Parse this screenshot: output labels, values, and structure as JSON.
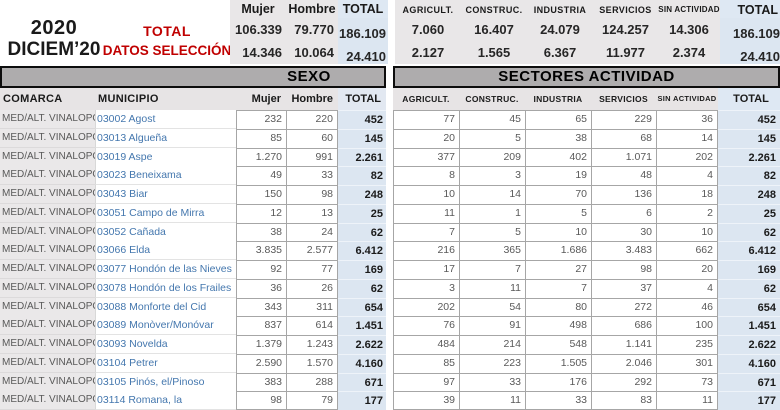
{
  "colors": {
    "accent_red": "#C00000",
    "link_blue": "#4477AE",
    "total_fill": "#DCE6F1",
    "band_gray": "#AEACAD"
  },
  "header": {
    "period_year": "2020",
    "period_month": "DICIEM’20",
    "total_label": "TOTAL",
    "selection_label": "DATOS SELECCIÓN",
    "sexo_summary": {
      "columns": [
        "Mujer",
        "Hombre",
        "TOTAL"
      ],
      "total_row": [
        "106.339",
        "79.770",
        "186.109"
      ],
      "selection_row": [
        "14.346",
        "10.064",
        "24.410"
      ]
    },
    "sectores_summary": {
      "columns": [
        "AGRICULT.",
        "CONSTRUC.",
        "INDUSTRIA",
        "SERVICIOS",
        "SIN ACTIVIDAD",
        "TOTAL"
      ],
      "total_row": [
        "7.060",
        "16.407",
        "24.079",
        "124.257",
        "14.306",
        "186.109"
      ],
      "selection_row": [
        "2.127",
        "1.565",
        "6.367",
        "11.977",
        "2.374",
        "24.410"
      ]
    }
  },
  "table": {
    "sexo_band": "SEXO",
    "sectores_band": "SECTORES ACTIVIDAD",
    "comarca_header": "COMARCA",
    "municipio_header": "MUNICIPIO",
    "sexo_columns": [
      "Mujer",
      "Hombre",
      "TOTAL"
    ],
    "sector_columns": [
      "AGRICULT.",
      "CONSTRUC.",
      "INDUSTRIA",
      "SERVICIOS",
      "SIN ACTIVIDAD",
      "TOTAL"
    ],
    "rows": [
      {
        "comarca": "MED/ALT. VINALOPÓ",
        "municipio": "03002 Agost",
        "mujer": "232",
        "hombre": "220",
        "total_sexo": "452",
        "agricult": "77",
        "construc": "45",
        "industria": "65",
        "servicios": "229",
        "sin_actividad": "36",
        "total_sectores": "452"
      },
      {
        "comarca": "MED/ALT. VINALOPÓ",
        "municipio": "03013 Algueña",
        "mujer": "85",
        "hombre": "60",
        "total_sexo": "145",
        "agricult": "20",
        "construc": "5",
        "industria": "38",
        "servicios": "68",
        "sin_actividad": "14",
        "total_sectores": "145"
      },
      {
        "comarca": "MED/ALT. VINALOPÓ",
        "municipio": "03019 Aspe",
        "mujer": "1.270",
        "hombre": "991",
        "total_sexo": "2.261",
        "agricult": "377",
        "construc": "209",
        "industria": "402",
        "servicios": "1.071",
        "sin_actividad": "202",
        "total_sectores": "2.261"
      },
      {
        "comarca": "MED/ALT. VINALOPÓ",
        "municipio": "03023 Beneixama",
        "mujer": "49",
        "hombre": "33",
        "total_sexo": "82",
        "agricult": "8",
        "construc": "3",
        "industria": "19",
        "servicios": "48",
        "sin_actividad": "4",
        "total_sectores": "82"
      },
      {
        "comarca": "MED/ALT. VINALOPÓ",
        "municipio": "03043 Biar",
        "mujer": "150",
        "hombre": "98",
        "total_sexo": "248",
        "agricult": "10",
        "construc": "14",
        "industria": "70",
        "servicios": "136",
        "sin_actividad": "18",
        "total_sectores": "248"
      },
      {
        "comarca": "MED/ALT. VINALOPÓ",
        "municipio": "03051 Campo de Mirra",
        "mujer": "12",
        "hombre": "13",
        "total_sexo": "25",
        "agricult": "11",
        "construc": "1",
        "industria": "5",
        "servicios": "6",
        "sin_actividad": "2",
        "total_sectores": "25"
      },
      {
        "comarca": "MED/ALT. VINALOPÓ",
        "municipio": "03052 Cañada",
        "mujer": "38",
        "hombre": "24",
        "total_sexo": "62",
        "agricult": "7",
        "construc": "5",
        "industria": "10",
        "servicios": "30",
        "sin_actividad": "10",
        "total_sectores": "62"
      },
      {
        "comarca": "MED/ALT. VINALOPÓ",
        "municipio": "03066 Elda",
        "mujer": "3.835",
        "hombre": "2.577",
        "total_sexo": "6.412",
        "agricult": "216",
        "construc": "365",
        "industria": "1.686",
        "servicios": "3.483",
        "sin_actividad": "662",
        "total_sectores": "6.412"
      },
      {
        "comarca": "MED/ALT. VINALOPÓ",
        "municipio": "03077 Hondón de las Nieves",
        "mujer": "92",
        "hombre": "77",
        "total_sexo": "169",
        "agricult": "17",
        "construc": "7",
        "industria": "27",
        "servicios": "98",
        "sin_actividad": "20",
        "total_sectores": "169"
      },
      {
        "comarca": "MED/ALT. VINALOPÓ",
        "municipio": "03078 Hondón de los Frailes",
        "mujer": "36",
        "hombre": "26",
        "total_sexo": "62",
        "agricult": "3",
        "construc": "11",
        "industria": "7",
        "servicios": "37",
        "sin_actividad": "4",
        "total_sectores": "62"
      },
      {
        "comarca": "MED/ALT. VINALOPÓ",
        "municipio": "03088 Monforte del Cid",
        "mujer": "343",
        "hombre": "311",
        "total_sexo": "654",
        "agricult": "202",
        "construc": "54",
        "industria": "80",
        "servicios": "272",
        "sin_actividad": "46",
        "total_sectores": "654"
      },
      {
        "comarca": "MED/ALT. VINALOPÓ",
        "municipio": "03089 Monòver/Monóvar",
        "mujer": "837",
        "hombre": "614",
        "total_sexo": "1.451",
        "agricult": "76",
        "construc": "91",
        "industria": "498",
        "servicios": "686",
        "sin_actividad": "100",
        "total_sectores": "1.451"
      },
      {
        "comarca": "MED/ALT. VINALOPÓ",
        "municipio": "03093 Novelda",
        "mujer": "1.379",
        "hombre": "1.243",
        "total_sexo": "2.622",
        "agricult": "484",
        "construc": "214",
        "industria": "548",
        "servicios": "1.141",
        "sin_actividad": "235",
        "total_sectores": "2.622"
      },
      {
        "comarca": "MED/ALT. VINALOPÓ",
        "municipio": "03104 Petrer",
        "mujer": "2.590",
        "hombre": "1.570",
        "total_sexo": "4.160",
        "agricult": "85",
        "construc": "223",
        "industria": "1.505",
        "servicios": "2.046",
        "sin_actividad": "301",
        "total_sectores": "4.160"
      },
      {
        "comarca": "MED/ALT. VINALOPÓ",
        "municipio": "03105 Pinós, el/Pinoso",
        "mujer": "383",
        "hombre": "288",
        "total_sexo": "671",
        "agricult": "97",
        "construc": "33",
        "industria": "176",
        "servicios": "292",
        "sin_actividad": "73",
        "total_sectores": "671"
      },
      {
        "comarca": "MED/ALT. VINALOPÓ",
        "municipio": "03114 Romana, la",
        "mujer": "98",
        "hombre": "79",
        "total_sexo": "177",
        "agricult": "39",
        "construc": "11",
        "industria": "33",
        "servicios": "83",
        "sin_actividad": "11",
        "total_sectores": "177"
      }
    ]
  }
}
